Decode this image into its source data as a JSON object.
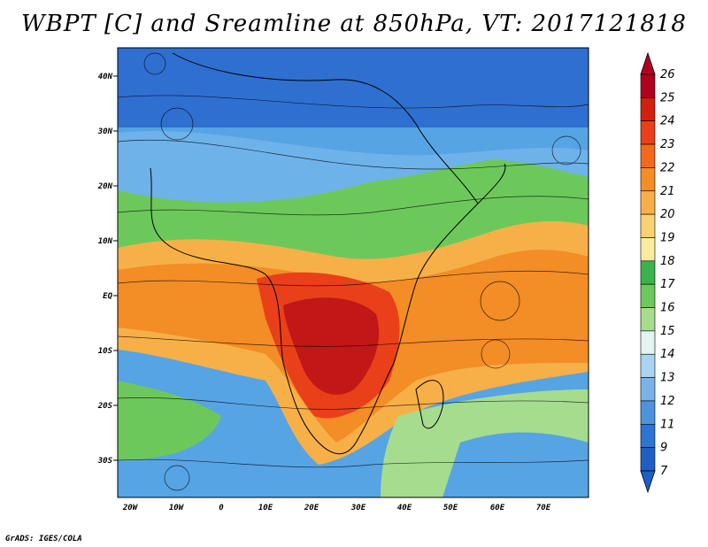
{
  "title": "WBPT [C] and Sreamline at 850hPa, VT: 2017121818",
  "credit": "GrADS: IGES/COLA",
  "lat_labels": [
    "40N",
    "30N",
    "20N",
    "10N",
    "EQ",
    "10S",
    "20S",
    "30S"
  ],
  "lon_labels": [
    "20W",
    "10W",
    "0",
    "10E",
    "20E",
    "30E",
    "40E",
    "50E",
    "60E",
    "70E"
  ],
  "colorbar": {
    "labels": [
      "26",
      "25",
      "24",
      "23",
      "22",
      "21",
      "20",
      "19",
      "18",
      "17",
      "16",
      "15",
      "14",
      "13",
      "12",
      "11",
      "9",
      "7"
    ],
    "colors": [
      "#b2001f",
      "#d2200f",
      "#e9401a",
      "#f16a1c",
      "#f38d26",
      "#f7b048",
      "#fad173",
      "#fcea9f",
      "#3cb34a",
      "#6dc85c",
      "#a6dc8e",
      "#e1f5f2",
      "#a8d4f0",
      "#7ab3e6",
      "#4d94dc",
      "#2e74d2",
      "#1f5fc4"
    ]
  }
}
